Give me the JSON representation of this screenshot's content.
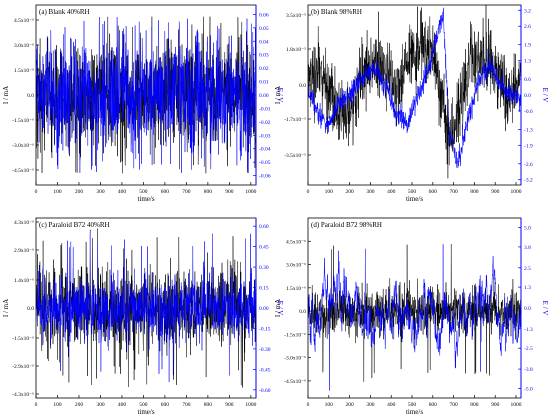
{
  "figure": {
    "background": "#ffffff"
  },
  "chart_data": [
    {
      "type": "line",
      "title": "(a) Blank 40%RH",
      "xlabel": "time/s",
      "ylabel_left": "I / mA",
      "ylabel_right": "E / V",
      "xlim": [
        0,
        1024
      ],
      "xticks": [
        0,
        100,
        200,
        300,
        400,
        500,
        600,
        700,
        800,
        900,
        1000
      ],
      "ylim_left": [
        -5.4e-06,
        5.4e-06
      ],
      "yticks_left": [
        "4.5x10⁻⁶",
        "3.0x10⁻⁶",
        "1.5x10⁻⁶",
        "0.0",
        "-1.5x10⁻⁶",
        "-3.0x10⁻⁶",
        "-4.5x10⁻⁶"
      ],
      "ytick_values_left": [
        4.5e-06,
        3e-06,
        1.5e-06,
        0,
        -1.5e-06,
        -3e-06,
        -4.5e-06
      ],
      "ylim_right": [
        -0.067,
        0.067
      ],
      "yticks_right": [
        "0.06",
        "0.05",
        "0.04",
        "0.03",
        "0.02",
        "0.01",
        "0.00",
        "-0.01",
        "-0.02",
        "-0.03",
        "-0.04",
        "-0.05",
        "-0.06"
      ],
      "ytick_values_right": [
        0.06,
        0.05,
        0.04,
        0.03,
        0.02,
        0.01,
        0,
        -0.01,
        -0.02,
        -0.03,
        -0.04,
        -0.05,
        -0.06
      ],
      "series": [
        {
          "axis": "left",
          "color": "#000000",
          "pattern": "noise",
          "amplitude": 3e-06,
          "peak": 4.7e-06
        },
        {
          "axis": "right",
          "color": "#0000ff",
          "pattern": "noise",
          "amplitude": 0.038,
          "peak": 0.058
        }
      ]
    },
    {
      "type": "line",
      "title": "(b) Blank 98%RH",
      "xlabel": "time/s",
      "ylabel_left": "I / mA",
      "ylabel_right": "E / V",
      "xlim": [
        0,
        1024
      ],
      "xticks": [
        0,
        100,
        200,
        300,
        400,
        500,
        600,
        700,
        800,
        900,
        1000
      ],
      "ylim_left": [
        -5e-05,
        4e-05
      ],
      "yticks_left": [
        "3.5x10⁻⁵",
        "1.8x10⁻⁵",
        "0.0",
        "-1.7x10⁻⁵",
        "-3.5x10⁻⁵"
      ],
      "ytick_values_left": [
        3.5e-05,
        1.8e-05,
        0,
        -1.7e-05,
        -3.5e-05
      ],
      "ylim_right": [
        -3.4,
        3.4
      ],
      "yticks_right": [
        "3.2",
        "2.6",
        "1.9",
        "1.3",
        "0.6",
        "0.0",
        "-0.6",
        "-1.3",
        "-1.9",
        "-2.6",
        "-3.2"
      ],
      "ytick_values_right": [
        3.2,
        2.6,
        1.9,
        1.3,
        0.6,
        0,
        -0.6,
        -1.3,
        -1.9,
        -2.6,
        -3.2
      ],
      "series": [
        {
          "axis": "left",
          "color": "#000000",
          "pattern": "drift-noise",
          "amplitude": 1.2e-05,
          "trend_x": [
            0,
            60,
            130,
            180,
            240,
            300,
            360,
            420,
            480,
            540,
            600,
            640,
            680,
            720,
            780,
            840,
            900,
            960,
            1024
          ],
          "trend_y": [
            2e-06,
            6e-06,
            -8e-06,
            -2e-05,
            2e-06,
            1e-05,
            8e-06,
            -2e-06,
            1.2e-05,
            1.8e-05,
            1.5e-05,
            -8e-06,
            -2.5e-05,
            -1.5e-05,
            1e-05,
            1.6e-05,
            6e-06,
            -6e-06,
            3e-06
          ]
        },
        {
          "axis": "right",
          "color": "#0000ff",
          "pattern": "drift",
          "amplitude": 0.2,
          "trend_x": [
            0,
            50,
            100,
            150,
            200,
            260,
            320,
            380,
            420,
            480,
            520,
            580,
            620,
            650,
            680,
            720,
            780,
            820,
            880,
            930,
            980,
            1024
          ],
          "trend_y": [
            0.2,
            -0.7,
            -1.1,
            -0.3,
            0.0,
            0.6,
            1.0,
            0.3,
            -0.7,
            -1.1,
            -0.2,
            1.0,
            2.2,
            3.0,
            -1.5,
            -2.6,
            -0.5,
            0.6,
            1.1,
            0.3,
            0.0,
            -0.2
          ]
        }
      ]
    },
    {
      "type": "line",
      "title": "(c) Paraloid B72 40%RH",
      "xlabel": "time/s",
      "ylabel_left": "I / mA",
      "ylabel_right": "E / V",
      "xlim": [
        0,
        1024
      ],
      "xticks": [
        0,
        100,
        200,
        300,
        400,
        500,
        600,
        700,
        800,
        900,
        1000
      ],
      "ylim_left": [
        -4.5e-06,
        4.5e-06
      ],
      "yticks_left": [
        "4.3x10⁻⁶",
        "2.9x10⁻⁶",
        "1.4x10⁻⁶",
        "0.0",
        "-1.5x10⁻⁶",
        "-2.9x10⁻⁶",
        "-4.3x10⁻⁶"
      ],
      "ytick_values_left": [
        4.3e-06,
        2.9e-06,
        1.4e-06,
        0,
        -1.5e-06,
        -2.9e-06,
        -4.3e-06
      ],
      "ylim_right": [
        -0.66,
        0.66
      ],
      "yticks_right": [
        "0.60",
        "0.45",
        "0.30",
        "0.15",
        "0.00",
        "-0.15",
        "-0.30",
        "-0.45",
        "-0.60"
      ],
      "ytick_values_right": [
        0.6,
        0.45,
        0.3,
        0.15,
        0,
        -0.15,
        -0.3,
        -0.45,
        -0.6
      ],
      "series": [
        {
          "axis": "left",
          "color": "#000000",
          "pattern": "noise",
          "amplitude": 1.9e-06,
          "peak": 4e-06
        },
        {
          "axis": "right",
          "color": "#0000ff",
          "pattern": "noise",
          "amplitude": 0.2,
          "peak": 0.55
        }
      ]
    },
    {
      "type": "line",
      "title": "(d) Paraloid B72 98%RH",
      "xlabel": "time/s",
      "ylabel_left": "I / mA",
      "ylabel_right": "E / V",
      "xlim": [
        0,
        1024
      ],
      "xticks": [
        0,
        100,
        200,
        300,
        400,
        500,
        600,
        700,
        800,
        900,
        1000
      ],
      "ylim_left": [
        -5.6e-06,
        6e-06
      ],
      "yticks_left": [
        "4.5x10⁻⁶",
        "3.0x10⁻⁶",
        "1.5x10⁻⁶",
        "0.0",
        "-1.5x10⁻⁶",
        "-3.0x10⁻⁶",
        "-4.5x10⁻⁶"
      ],
      "ytick_values_left": [
        4.5e-06,
        3e-06,
        1.5e-06,
        0,
        -1.5e-06,
        -3e-06,
        -4.5e-06
      ],
      "ylim_right": [
        -5.6,
        5.6
      ],
      "yticks_right": [
        "5.0",
        "3.8",
        "2.5",
        "1.3",
        "0.0",
        "-1.3",
        "-2.5",
        "-3.8",
        "-5.0"
      ],
      "ytick_values_right": [
        5.0,
        3.8,
        2.5,
        1.3,
        0,
        -1.3,
        -2.5,
        -3.8,
        -5.0
      ],
      "series": [
        {
          "axis": "left",
          "color": "#000000",
          "pattern": "noise",
          "amplitude": 1.4e-06,
          "peak": 4.6e-06
        },
        {
          "axis": "right",
          "color": "#0000ff",
          "pattern": "spiky",
          "amplitude": 1.0,
          "peak": 5.2
        }
      ]
    }
  ]
}
